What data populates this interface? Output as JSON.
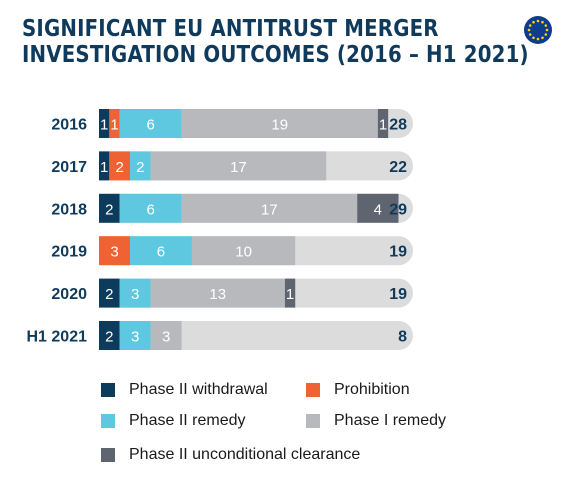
{
  "title_line1": "SIGNIFICANT EU ANTITRUST MERGER",
  "title_line2": "INVESTIGATION OUTCOMES (2016 – H1 2021)",
  "logo_icon": "eu-flag-icon",
  "colors": {
    "phase2_withdrawal": "#0d3b5c",
    "prohibition": "#ee6234",
    "phase2_remedy": "#5ec8e0",
    "phase1_remedy": "#b7b9bd",
    "phase2_unconditional": "#5f6570",
    "remainder": "#dcdcdc",
    "title": "#0f3a5c",
    "flag_blue": "#0d3d8c",
    "flag_star": "#ffd200"
  },
  "chart_data": {
    "type": "bar",
    "orientation": "horizontal",
    "stacked": true,
    "categories": [
      "2016",
      "2017",
      "2018",
      "2019",
      "2020",
      "H1 2021"
    ],
    "series": [
      {
        "name": "Phase II withdrawal",
        "key": "phase2_withdrawal",
        "values": [
          1,
          1,
          2,
          0,
          2,
          2
        ]
      },
      {
        "name": "Prohibition",
        "key": "prohibition",
        "values": [
          1,
          2,
          0,
          3,
          0,
          0
        ]
      },
      {
        "name": "Phase II remedy",
        "key": "phase2_remedy",
        "values": [
          6,
          2,
          6,
          6,
          3,
          3
        ]
      },
      {
        "name": "Phase I remedy",
        "key": "phase1_remedy",
        "values": [
          19,
          17,
          17,
          10,
          13,
          3
        ]
      },
      {
        "name": "Phase II unconditional clearance",
        "key": "phase2_unconditional",
        "values": [
          1,
          0,
          4,
          0,
          1,
          0
        ]
      }
    ],
    "totals": [
      28,
      22,
      29,
      19,
      19,
      8
    ],
    "xlim": [
      0,
      29
    ],
    "grid": false,
    "legend_position": "bottom"
  },
  "legend": [
    {
      "label": "Phase II withdrawal",
      "key": "phase2_withdrawal"
    },
    {
      "label": "Prohibition",
      "key": "prohibition"
    },
    {
      "label": "Phase II remedy",
      "key": "phase2_remedy"
    },
    {
      "label": "Phase I remedy",
      "key": "phase1_remedy"
    },
    {
      "label": "Phase II unconditional clearance",
      "key": "phase2_unconditional"
    }
  ]
}
